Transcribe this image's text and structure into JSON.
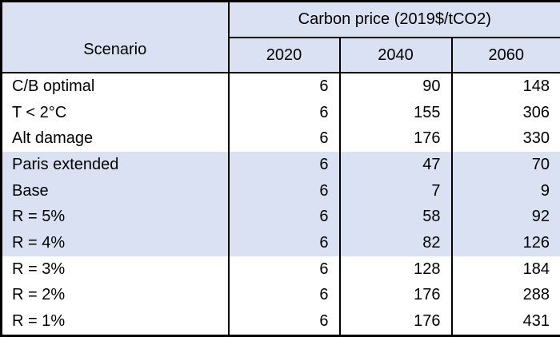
{
  "table": {
    "scenario_header": "Scenario",
    "group_header": "Carbon price (2019$/tCO2)",
    "years": [
      "2020",
      "2040",
      "2060"
    ],
    "rows": [
      {
        "scenario": "C/B optimal",
        "values": [
          "6",
          "90",
          "148"
        ]
      },
      {
        "scenario": "T < 2°C",
        "values": [
          "6",
          "155",
          "306"
        ]
      },
      {
        "scenario": "Alt damage",
        "values": [
          "6",
          "176",
          "330"
        ]
      },
      {
        "scenario": "Paris extended",
        "values": [
          "6",
          "47",
          "70"
        ]
      },
      {
        "scenario": "Base",
        "values": [
          "6",
          "7",
          "9"
        ]
      },
      {
        "scenario": "R = 5%",
        "values": [
          "6",
          "58",
          "92"
        ]
      },
      {
        "scenario": "R = 4%",
        "values": [
          "6",
          "82",
          "126"
        ]
      },
      {
        "scenario": "R = 3%",
        "values": [
          "6",
          "128",
          "184"
        ]
      },
      {
        "scenario": "R = 2%",
        "values": [
          "6",
          "176",
          "288"
        ]
      },
      {
        "scenario": "R = 1%",
        "values": [
          "6",
          "176",
          "431"
        ]
      }
    ],
    "shaded_row_indices": [
      3,
      4,
      5,
      6
    ]
  },
  "colors": {
    "header_bg": "#d9e1f2",
    "shaded_row_bg": "#d9e1f2",
    "row_bg": "#ffffff",
    "border": "#000000",
    "text": "#000000"
  },
  "chart_data": {
    "type": "table",
    "title": "Carbon price (2019$/tCO2)",
    "columns": [
      "Scenario",
      "2020",
      "2040",
      "2060"
    ],
    "rows": [
      [
        "C/B optimal",
        6,
        90,
        148
      ],
      [
        "T < 2°C",
        6,
        155,
        306
      ],
      [
        "Alt damage",
        6,
        176,
        330
      ],
      [
        "Paris extended",
        6,
        47,
        70
      ],
      [
        "Base",
        6,
        7,
        9
      ],
      [
        "R = 5%",
        6,
        58,
        92
      ],
      [
        "R = 4%",
        6,
        82,
        126
      ],
      [
        "R = 3%",
        6,
        128,
        184
      ],
      [
        "R = 2%",
        6,
        176,
        288
      ],
      [
        "R = 1%",
        6,
        176,
        431
      ]
    ]
  }
}
